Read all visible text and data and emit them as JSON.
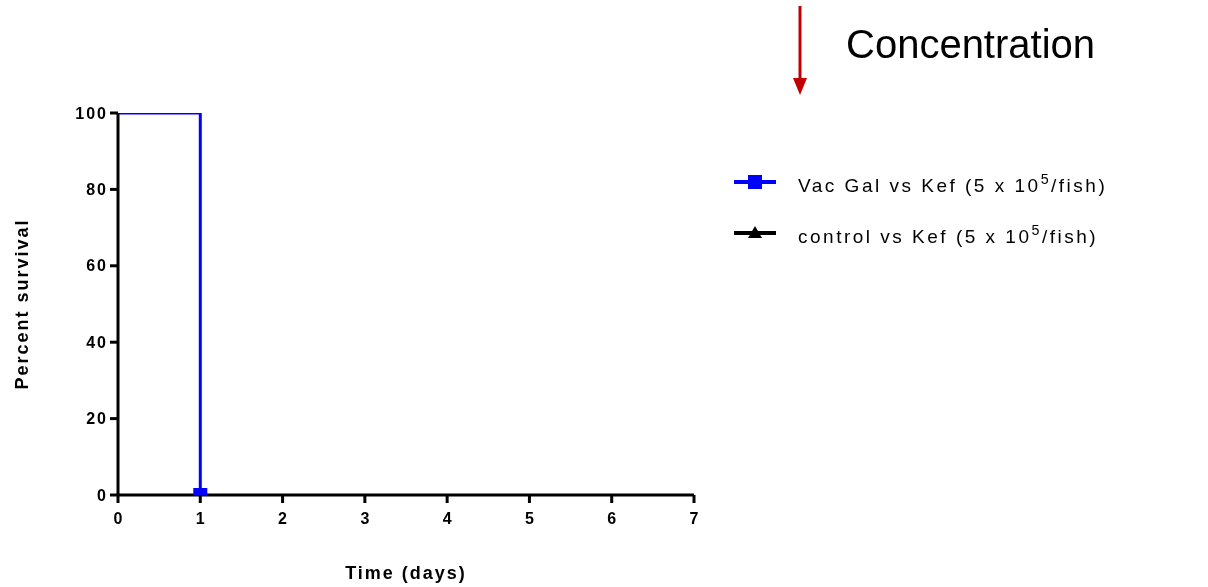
{
  "chart_data": {
    "type": "step",
    "xlabel": "Time (days)",
    "ylabel": "Percent survival",
    "annotations": [
      "Concentration"
    ],
    "x": [
      0,
      1
    ],
    "xlim": [
      0,
      7
    ],
    "xticks": [
      0,
      1,
      2,
      3,
      4,
      5,
      6,
      7
    ],
    "ylim": [
      0,
      100
    ],
    "yticks": [
      0,
      20,
      40,
      60,
      80,
      100
    ],
    "grid": false,
    "legend": "right",
    "series": [
      {
        "name": "Vac Gal vs Kef (5 x 10$^{5}$/fish)",
        "color": "#0000ff",
        "marker": "square",
        "values": [
          100,
          0
        ]
      },
      {
        "name": "control vs Kef (5 x 10$^{5}$/fish)",
        "color": "#000000",
        "marker": "triangle",
        "values": [
          null,
          null
        ]
      }
    ]
  }
}
